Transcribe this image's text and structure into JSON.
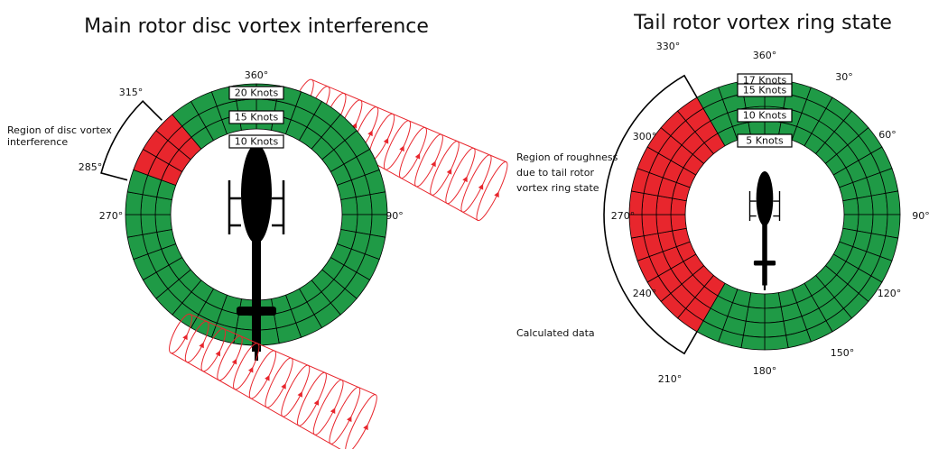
{
  "left": {
    "title": "Main rotor disc vortex interference",
    "angles": [
      "360°",
      "315°",
      "285°",
      "270°",
      "90°"
    ],
    "speeds": [
      "20 Knots",
      "15 Knots",
      "10 Knots"
    ],
    "note": [
      "Region of disc vortex",
      "interference"
    ]
  },
  "right": {
    "title": "Tail rotor vortex ring state",
    "angles": [
      "330°",
      "360°",
      "30°",
      "60°",
      "90°",
      "120°",
      "150°",
      "180°",
      "210°",
      "240°",
      "270°",
      "300°"
    ],
    "speeds": [
      "17 Knots",
      "15 Knots",
      "10 Knots",
      "5 Knots"
    ],
    "note": [
      "Region of roughness",
      "due to tail rotor",
      "vortex ring state"
    ],
    "source": "Calculated data"
  }
}
